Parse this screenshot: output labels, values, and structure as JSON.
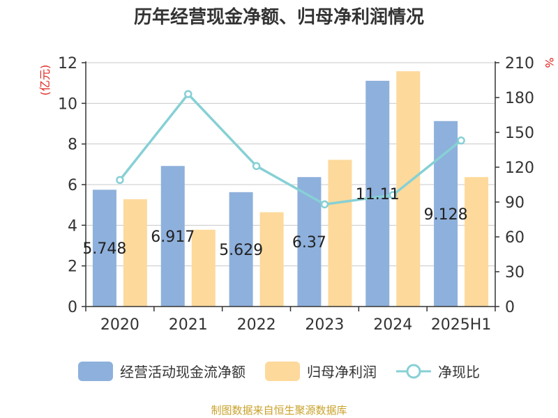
{
  "title": "历年经营现金净额、归母净利润情况",
  "source": "制图数据来自恒生聚源数据库",
  "colors": {
    "cash": "#8eb0dc",
    "profit": "#fdd99b",
    "ratio": "#86d0d5"
  },
  "chart_data": {
    "type": "bar",
    "categories": [
      "2020",
      "2021",
      "2022",
      "2023",
      "2024",
      "2025H1"
    ],
    "series": [
      {
        "name": "经营活动现金流净额",
        "type": "bar",
        "axis": "left",
        "values": [
          5.748,
          6.917,
          5.629,
          6.37,
          11.11,
          9.128
        ],
        "labels": [
          "5.748",
          "6.917",
          "5.629",
          "6.37",
          "11.11",
          "9.128"
        ]
      },
      {
        "name": "归母净利润",
        "type": "bar",
        "axis": "left",
        "values": [
          5.28,
          3.78,
          4.64,
          7.22,
          11.58,
          6.37
        ]
      },
      {
        "name": "净现比",
        "type": "line",
        "axis": "right",
        "values": [
          109,
          183,
          121,
          88,
          96,
          143
        ]
      }
    ],
    "y_left": {
      "label": "(亿元)",
      "ylim": [
        0,
        12
      ],
      "ticks": [
        0,
        2,
        4,
        6,
        8,
        10,
        12
      ]
    },
    "y_right": {
      "label": "%",
      "ylim": [
        0,
        210
      ],
      "ticks": [
        0,
        30,
        60,
        90,
        120,
        150,
        180,
        210
      ]
    },
    "grid": true,
    "legend": "bottom"
  }
}
